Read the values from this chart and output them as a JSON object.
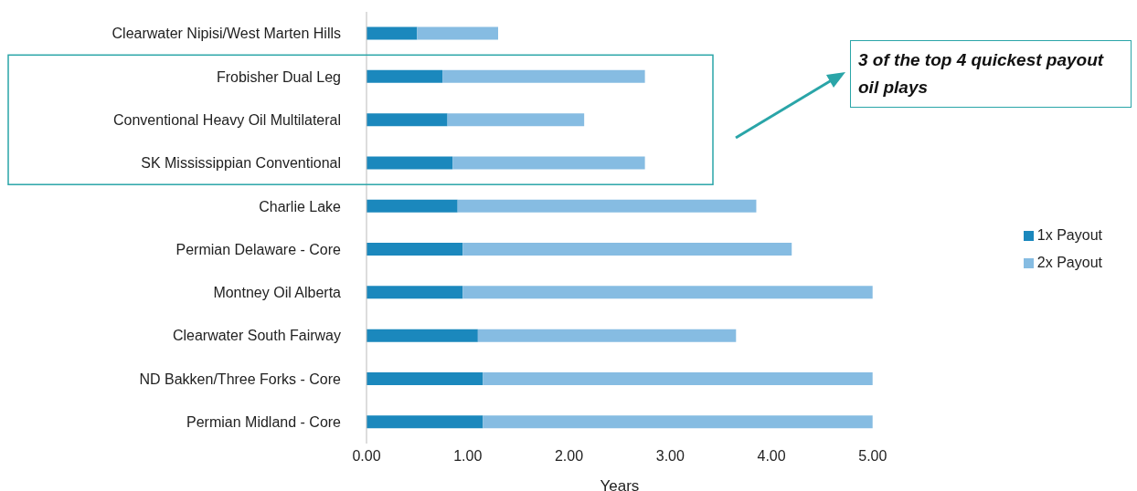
{
  "chart_data": {
    "type": "bar",
    "orientation": "horizontal",
    "stacked": true,
    "xlabel": "Years",
    "categories": [
      "Clearwater Nipisi/West Marten Hills",
      "Frobisher Dual Leg",
      "Conventional Heavy Oil Multilateral",
      "SK Mississippian Conventional",
      "Charlie Lake",
      "Permian Delaware - Core",
      "Montney Oil Alberta",
      "Clearwater South Fairway",
      "ND Bakken/Three Forks - Core",
      "Permian Midland - Core"
    ],
    "series": [
      {
        "name": "1x Payout",
        "color": "#1b88bd",
        "values": [
          0.5,
          0.75,
          0.8,
          0.85,
          0.9,
          0.95,
          0.95,
          1.1,
          1.15,
          1.15
        ]
      },
      {
        "name": "2x Payout",
        "color": "#86bce2",
        "values": [
          0.8,
          2.0,
          1.35,
          1.9,
          2.95,
          3.25,
          4.05,
          2.55,
          3.85,
          3.85
        ]
      }
    ],
    "xlim": [
      0,
      5
    ],
    "xticks": [
      {
        "value": 0,
        "label": "0.00"
      },
      {
        "value": 1,
        "label": "1.00"
      },
      {
        "value": 2,
        "label": "2.00"
      },
      {
        "value": 3,
        "label": "3.00"
      },
      {
        "value": 4,
        "label": "4.00"
      },
      {
        "value": 5,
        "label": "5.00"
      }
    ],
    "legend": "right",
    "grid": false,
    "annotations": [
      "3 of the top 4 quickest payout oil plays"
    ]
  }
}
